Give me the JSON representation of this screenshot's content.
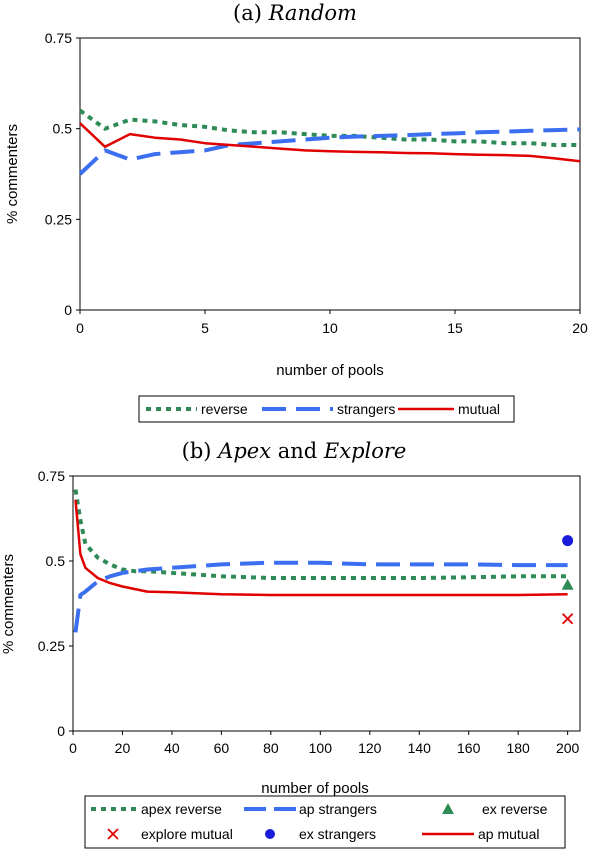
{
  "chart_data": [
    {
      "type": "line",
      "title": "(a) ",
      "title_italic": "Random",
      "xlabel": "number of pools",
      "ylabel": "% commenters",
      "xlim": [
        0,
        20
      ],
      "ylim": [
        0,
        0.75
      ],
      "x_ticks": [
        0,
        5,
        10,
        15,
        20
      ],
      "x_tick_labels": [
        "0",
        "5",
        "10",
        "15",
        "20"
      ],
      "y_ticks": [
        0,
        0.25,
        0.5,
        0.75
      ],
      "y_tick_labels": [
        "0",
        "0.25",
        "0.5",
        "0.75"
      ],
      "grid": false,
      "legend_position": "bottom",
      "series": [
        {
          "name": "reverse",
          "style": "dotted",
          "color": "#2e8b57",
          "x": [
            0,
            1,
            2,
            3,
            4,
            5,
            6,
            7,
            8,
            9,
            10,
            11,
            12,
            13,
            14,
            15,
            16,
            17,
            18,
            19,
            20
          ],
          "y": [
            0.55,
            0.5,
            0.525,
            0.52,
            0.51,
            0.505,
            0.495,
            0.49,
            0.49,
            0.485,
            0.48,
            0.48,
            0.475,
            0.47,
            0.47,
            0.465,
            0.465,
            0.46,
            0.46,
            0.455,
            0.455
          ]
        },
        {
          "name": "strangers",
          "style": "dashed",
          "color": "#3c6ef0",
          "x": [
            0,
            1,
            2,
            3,
            4,
            5,
            6,
            7,
            8,
            9,
            10,
            11,
            12,
            13,
            14,
            15,
            16,
            17,
            18,
            19,
            20
          ],
          "y": [
            0.375,
            0.44,
            0.415,
            0.43,
            0.435,
            0.44,
            0.455,
            0.46,
            0.465,
            0.47,
            0.475,
            0.478,
            0.48,
            0.482,
            0.485,
            0.487,
            0.49,
            0.492,
            0.494,
            0.496,
            0.498
          ]
        },
        {
          "name": "mutual",
          "style": "solid",
          "color": "#e00000",
          "x": [
            0,
            1,
            2,
            3,
            4,
            5,
            6,
            7,
            8,
            9,
            10,
            11,
            12,
            13,
            14,
            15,
            16,
            17,
            18,
            19,
            20
          ],
          "y": [
            0.515,
            0.45,
            0.485,
            0.475,
            0.47,
            0.46,
            0.455,
            0.45,
            0.445,
            0.44,
            0.438,
            0.436,
            0.435,
            0.433,
            0.432,
            0.43,
            0.428,
            0.427,
            0.425,
            0.418,
            0.41
          ]
        }
      ]
    },
    {
      "type": "line",
      "title": "(b) ",
      "title_italic": "Apex",
      "title_mid": " and ",
      "title_italic2": "Explore",
      "xlabel": "number of pools",
      "ylabel": "% commenters",
      "xlim": [
        0,
        205
      ],
      "ylim": [
        0,
        0.75
      ],
      "x_ticks": [
        0,
        20,
        40,
        60,
        80,
        100,
        120,
        140,
        160,
        180,
        200
      ],
      "x_tick_labels": [
        "0",
        "20",
        "40",
        "60",
        "80",
        "100",
        "120",
        "140",
        "160",
        "180",
        "200"
      ],
      "y_ticks": [
        0,
        0.25,
        0.5,
        0.75
      ],
      "y_tick_labels": [
        "0",
        "0.25",
        "0.5",
        "0.75"
      ],
      "grid": false,
      "legend_position": "bottom",
      "series": [
        {
          "name": "apex reverse",
          "style": "dotted",
          "color": "#2e8b57",
          "x": [
            1,
            3,
            5,
            10,
            15,
            20,
            25,
            30,
            40,
            50,
            60,
            80,
            100,
            120,
            140,
            160,
            180,
            200
          ],
          "y": [
            0.71,
            0.62,
            0.55,
            0.51,
            0.49,
            0.475,
            0.47,
            0.47,
            0.465,
            0.46,
            0.455,
            0.45,
            0.45,
            0.45,
            0.45,
            0.452,
            0.455,
            0.455
          ]
        },
        {
          "name": "ap strangers",
          "style": "dashed",
          "color": "#3c6ef0",
          "x": [
            1,
            3,
            5,
            10,
            15,
            20,
            30,
            40,
            60,
            80,
            100,
            120,
            140,
            160,
            180,
            200
          ],
          "y": [
            0.29,
            0.4,
            0.41,
            0.44,
            0.455,
            0.465,
            0.475,
            0.48,
            0.49,
            0.495,
            0.495,
            0.49,
            0.49,
            0.49,
            0.488,
            0.488
          ]
        },
        {
          "name": "ap mutual",
          "style": "solid",
          "color": "#e00000",
          "x": [
            1,
            3,
            5,
            10,
            15,
            20,
            30,
            40,
            60,
            80,
            100,
            120,
            140,
            160,
            180,
            200
          ],
          "y": [
            0.68,
            0.52,
            0.48,
            0.45,
            0.435,
            0.425,
            0.41,
            0.408,
            0.402,
            0.4,
            0.4,
            0.4,
            0.4,
            0.4,
            0.4,
            0.402
          ]
        },
        {
          "name": "ex reverse",
          "style": "marker",
          "marker": "triangle",
          "color": "#2e8b57",
          "x": [
            200
          ],
          "y": [
            0.43
          ]
        },
        {
          "name": "explore mutual",
          "style": "marker",
          "marker": "x",
          "color": "#e00000",
          "x": [
            200
          ],
          "y": [
            0.33
          ]
        },
        {
          "name": "ex strangers",
          "style": "marker",
          "marker": "circle",
          "color": "#1a1adc",
          "x": [
            200
          ],
          "y": [
            0.56
          ]
        }
      ]
    }
  ]
}
